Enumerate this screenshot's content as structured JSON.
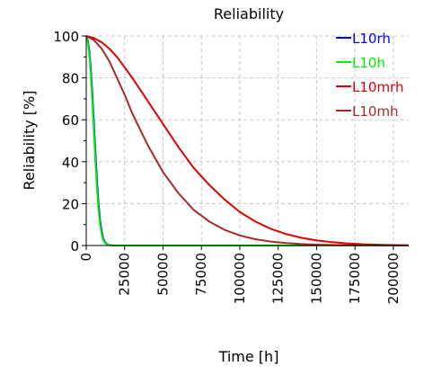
{
  "chart_data": {
    "type": "line",
    "title": "Reliability",
    "xlabel": "Time [h]",
    "ylabel": "Reliability [%]",
    "xlim": [
      0,
      210000
    ],
    "ylim": [
      0,
      100
    ],
    "xticks": [
      0,
      25000,
      50000,
      75000,
      100000,
      125000,
      150000,
      175000,
      200000
    ],
    "xtick_labels": [
      "0",
      "25000",
      "50000",
      "75000",
      "100000",
      "125000",
      "150000",
      "175000",
      "200000"
    ],
    "yticks": [
      0,
      20,
      40,
      60,
      80,
      100
    ],
    "ytick_labels": [
      "0",
      "20",
      "40",
      "60",
      "80",
      "100"
    ],
    "grid": true,
    "legend_position": "top-right",
    "series": [
      {
        "name": "L10rh",
        "color": "#0000ff",
        "x": [
          0,
          1000,
          2000,
          3000,
          4000,
          5000,
          6000,
          7000,
          8000,
          9000,
          10000,
          11000,
          12000,
          14000,
          16000,
          20000,
          30000,
          210000
        ],
        "y": [
          100,
          98,
          93,
          84,
          72,
          58,
          44,
          31,
          20,
          12,
          7,
          3.5,
          1.8,
          0.4,
          0.1,
          0,
          0,
          0
        ]
      },
      {
        "name": "L10h",
        "color": "#00ee00",
        "x": [
          0,
          1000,
          2000,
          3000,
          4000,
          5000,
          6000,
          7000,
          8000,
          9000,
          10000,
          11000,
          12000,
          14000,
          16000,
          20000,
          30000,
          210000
        ],
        "y": [
          100,
          97,
          91,
          81,
          68,
          54,
          40,
          27,
          17,
          10,
          5.5,
          2.8,
          1.4,
          0.3,
          0.05,
          0,
          0,
          0
        ]
      },
      {
        "name": "L10mrh",
        "color": "#dd0000",
        "x": [
          0,
          5000,
          10000,
          15000,
          20000,
          25000,
          30000,
          40000,
          50000,
          60000,
          70000,
          80000,
          90000,
          100000,
          110000,
          120000,
          130000,
          140000,
          150000,
          160000,
          170000,
          180000,
          190000,
          200000,
          210000
        ],
        "y": [
          100,
          99,
          97,
          94,
          90,
          85,
          80,
          69,
          58,
          47,
          37,
          29,
          22,
          16,
          11.5,
          8,
          5.5,
          3.7,
          2.4,
          1.6,
          1,
          0.6,
          0.4,
          0.2,
          0.1
        ]
      },
      {
        "name": "L10mh",
        "color": "#a52a2a",
        "x": [
          0,
          5000,
          10000,
          15000,
          20000,
          25000,
          30000,
          40000,
          50000,
          60000,
          70000,
          80000,
          90000,
          100000,
          110000,
          120000,
          130000,
          140000,
          150000,
          160000,
          170000,
          180000,
          200000,
          210000
        ],
        "y": [
          100,
          98,
          94,
          88,
          80,
          72,
          63,
          48,
          35,
          25,
          17,
          11.5,
          7.5,
          4.8,
          3,
          1.9,
          1.2,
          0.7,
          0.4,
          0.25,
          0.15,
          0.1,
          0.05,
          0
        ]
      }
    ]
  }
}
